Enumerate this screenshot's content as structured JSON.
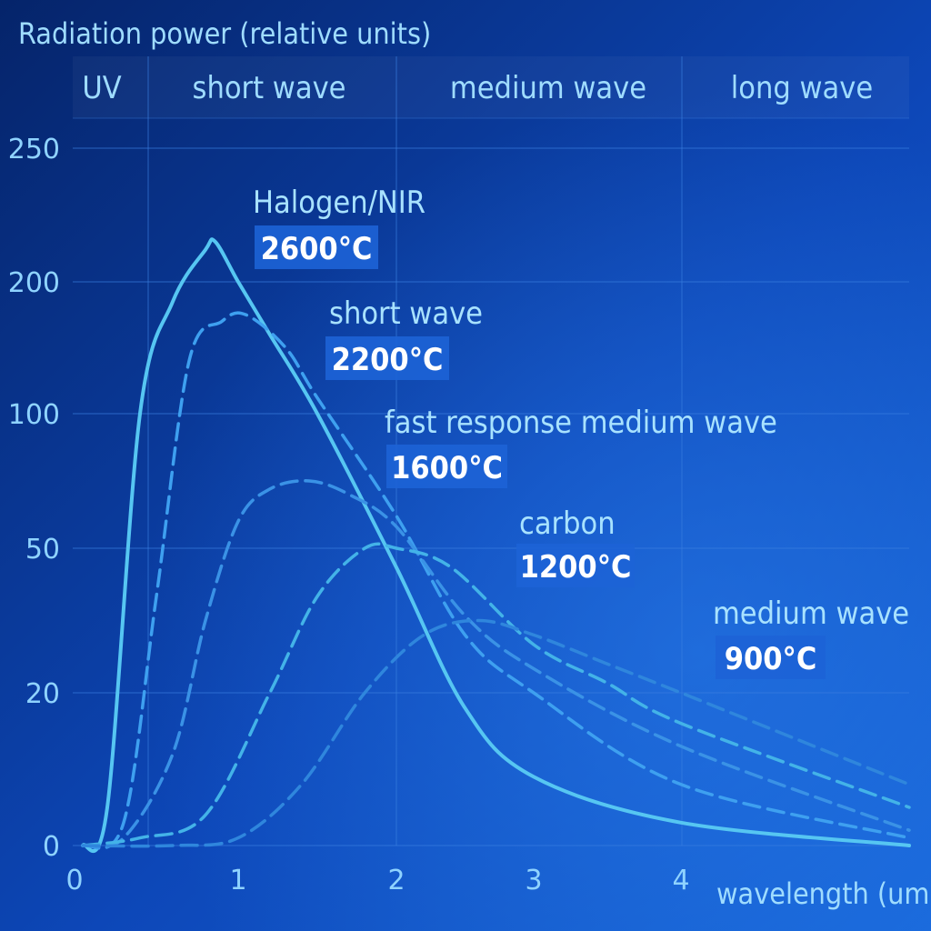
{
  "chart_data": {
    "type": "line",
    "title": "Radiation power (relative units)",
    "xlabel": "wavelength (um)",
    "ylabel": "Radiation power (relative units)",
    "x_ticks": [
      "0",
      "1",
      "2",
      "3",
      "4"
    ],
    "y_ticks": [
      "0",
      "20",
      "50",
      "100",
      "200",
      "250"
    ],
    "bands": [
      "UV",
      "short wave",
      "medium wave",
      "long wave"
    ],
    "xlim": [
      0,
      5.2
    ],
    "grid": true,
    "series": [
      {
        "name": "Halogen/NIR",
        "temperature": "2600°C",
        "style": "solid",
        "color": "#56c6f2",
        "x": [
          0.2,
          0.4,
          0.6,
          0.8,
          0.86,
          1.0,
          1.2,
          1.5,
          2.0,
          2.5,
          3.0,
          4.0,
          5.2
        ],
        "y": [
          5,
          100,
          185,
          212,
          215,
          200,
          160,
          100,
          46,
          18,
          9,
          3,
          0
        ]
      },
      {
        "name": "short wave",
        "temperature": "2200°C",
        "style": "dashed",
        "color": "#3ea0f0",
        "x": [
          0.3,
          0.5,
          0.7,
          0.9,
          1.05,
          1.3,
          1.5,
          2.0,
          2.5,
          3.0,
          4.0,
          5.2
        ],
        "y": [
          3,
          40,
          140,
          170,
          175,
          150,
          112,
          62,
          32,
          20,
          8,
          1
        ]
      },
      {
        "name": "fast response medium wave",
        "temperature": "1600°C",
        "style": "dashed",
        "color": "#3a92e6",
        "x": [
          0.3,
          0.6,
          0.8,
          1.0,
          1.2,
          1.45,
          1.7,
          2.0,
          2.5,
          3.0,
          4.0,
          5.2
        ],
        "y": [
          1,
          12,
          35,
          60,
          72,
          75,
          70,
          58,
          36,
          25,
          13,
          2
        ]
      },
      {
        "name": "carbon",
        "temperature": "1200°C",
        "style": "dashed",
        "color": "#43b3e8",
        "x": [
          0.4,
          0.8,
          1.2,
          1.5,
          1.8,
          2.0,
          2.4,
          3.0,
          3.5,
          4.0,
          5.2
        ],
        "y": [
          1,
          4,
          20,
          40,
          50,
          50,
          46,
          30,
          22,
          16,
          5
        ]
      },
      {
        "name": "medium wave",
        "temperature": "900°C",
        "style": "dashed",
        "color": "#2f86dd",
        "x": [
          0.6,
          1.0,
          1.4,
          1.8,
          2.2,
          2.6,
          3.0,
          3.5,
          4.0,
          4.6,
          5.2
        ],
        "y": [
          0,
          1,
          8,
          20,
          32,
          35,
          32,
          26,
          20,
          14,
          8
        ]
      }
    ],
    "colors": {
      "bg_dark": "#062a7a",
      "bg_light": "#1a66d8",
      "grid": "#3b7fe0",
      "badge": "#1d63d6"
    }
  }
}
